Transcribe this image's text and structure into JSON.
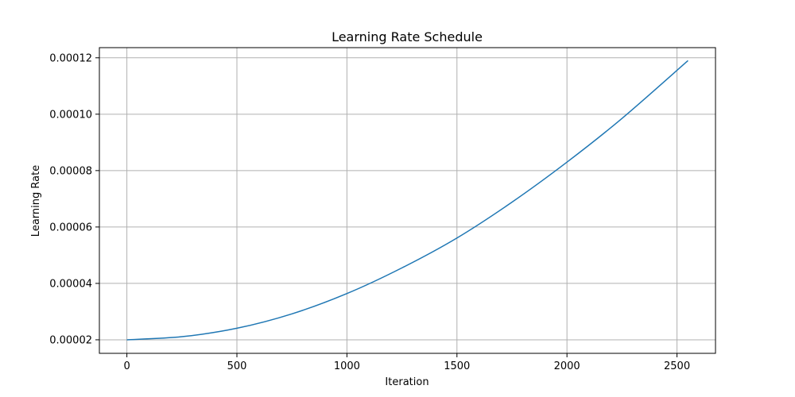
{
  "chart_data": {
    "type": "line",
    "title": "Learning Rate Schedule",
    "xlabel": "Iteration",
    "ylabel": "Learning Rate",
    "xlim": [
      -125,
      2675
    ],
    "ylim": [
      1.52e-05,
      0.0001236
    ],
    "x_ticks": [
      0,
      500,
      1000,
      1500,
      2000,
      2500
    ],
    "y_ticks": [
      2e-05,
      4e-05,
      6e-05,
      8e-05,
      0.0001,
      0.00012
    ],
    "x_tick_labels": [
      "0",
      "500",
      "1000",
      "1500",
      "2000",
      "2500"
    ],
    "y_tick_labels": [
      "0.00002",
      "0.00004",
      "0.00006",
      "0.00008",
      "0.00010",
      "0.00012"
    ],
    "grid": true,
    "series": [
      {
        "color": "#1f77b4",
        "x": [
          0,
          250,
          500,
          750,
          1000,
          1250,
          1500,
          1750,
          2000,
          2250,
          2550
        ],
        "y": [
          2e-05,
          2.11e-05,
          2.41e-05,
          2.92e-05,
          3.64e-05,
          4.55e-05,
          5.61e-05,
          6.88e-05,
          8.3e-05,
          9.85e-05,
          0.000119
        ]
      }
    ]
  }
}
